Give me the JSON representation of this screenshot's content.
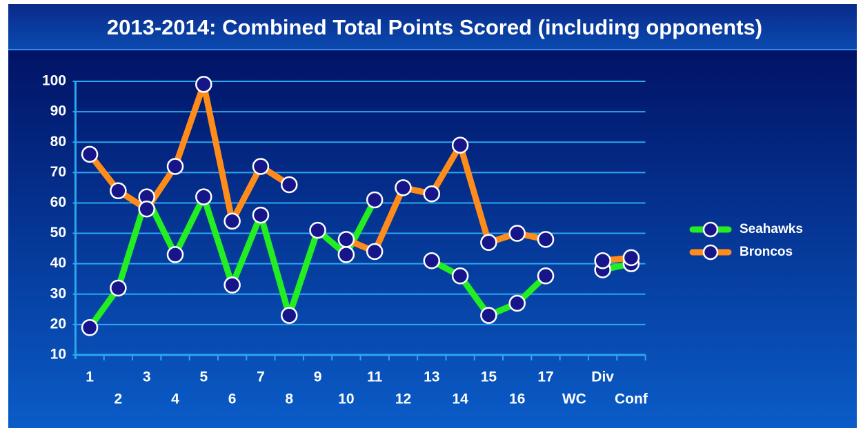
{
  "chart_data": {
    "type": "line",
    "title": "2013-2014: Combined Total Points Scored (including opponents)",
    "categories": [
      "1",
      "2",
      "3",
      "4",
      "5",
      "6",
      "7",
      "8",
      "9",
      "10",
      "11",
      "12",
      "13",
      "14",
      "15",
      "16",
      "17",
      "WC",
      "Div",
      "Conf"
    ],
    "series": [
      {
        "name": "Seahawks",
        "color": "#22ee22",
        "values": [
          19,
          32,
          62,
          43,
          62,
          33,
          56,
          23,
          51,
          43,
          61,
          null,
          41,
          36,
          23,
          27,
          36,
          null,
          38,
          40
        ]
      },
      {
        "name": "Broncos",
        "color": "#ff8c1a",
        "values": [
          76,
          64,
          58,
          72,
          99,
          54,
          72,
          66,
          null,
          48,
          44,
          65,
          63,
          79,
          47,
          50,
          48,
          null,
          41,
          42
        ]
      }
    ],
    "ylim": [
      10,
      100
    ],
    "yticks": [
      10,
      20,
      30,
      40,
      50,
      60,
      70,
      80,
      90,
      100
    ],
    "grid": true,
    "legend": "right"
  }
}
